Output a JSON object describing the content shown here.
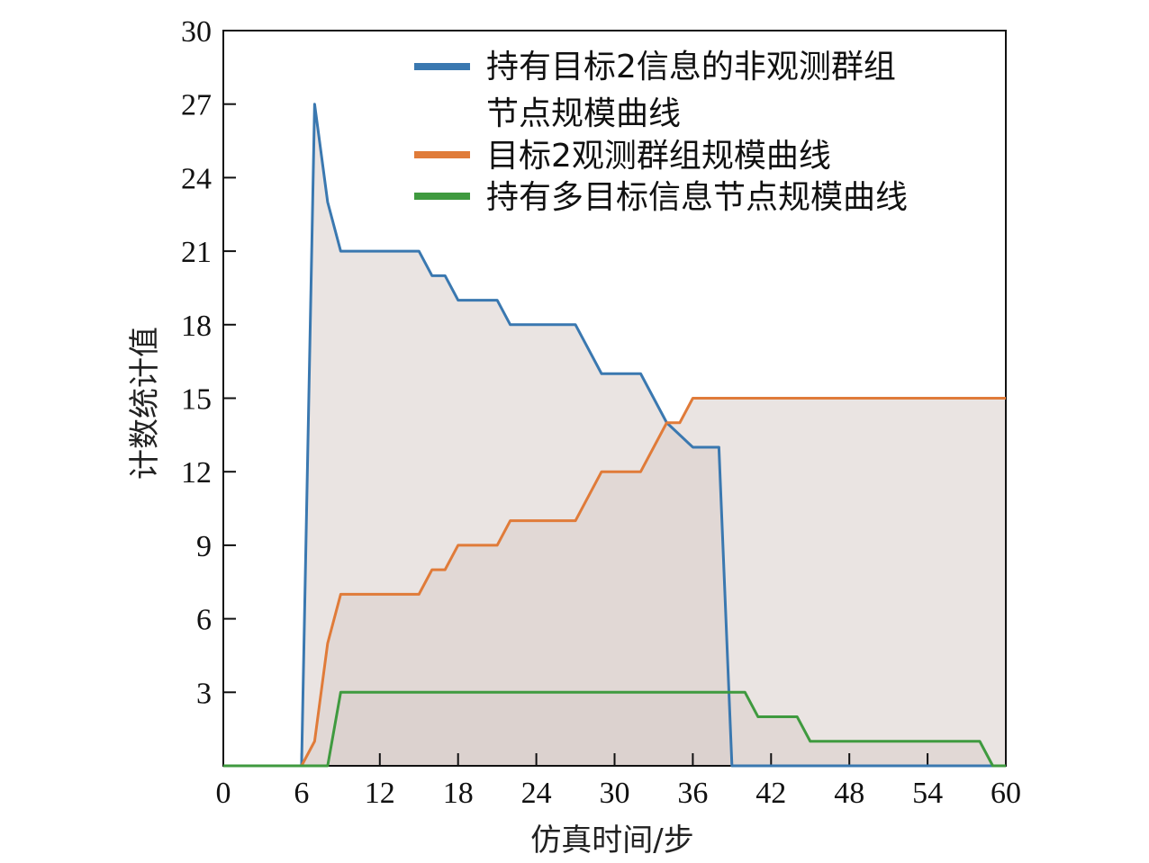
{
  "chart_data": {
    "type": "area",
    "xlabel": "仿真时间/步",
    "ylabel": "计数统计值",
    "xlim": [
      0,
      60
    ],
    "ylim": [
      0,
      30
    ],
    "x_ticks": [
      0,
      6,
      12,
      18,
      24,
      30,
      36,
      42,
      48,
      54,
      60
    ],
    "y_ticks": [
      3,
      6,
      9,
      12,
      15,
      18,
      21,
      24,
      27,
      30
    ],
    "origin_label": "0",
    "grid": false,
    "legend_position": "top-right",
    "area_fill_color": "#d9cdca",
    "series": [
      {
        "name": "持有目标2信息的非观测群组节点规模曲线",
        "color": "#3a78b0",
        "points": [
          [
            0,
            0
          ],
          [
            6,
            0
          ],
          [
            7,
            27
          ],
          [
            8,
            23
          ],
          [
            9,
            21
          ],
          [
            15,
            21
          ],
          [
            16,
            20
          ],
          [
            17,
            20
          ],
          [
            18,
            19
          ],
          [
            21,
            19
          ],
          [
            22,
            18
          ],
          [
            27,
            18
          ],
          [
            29,
            16
          ],
          [
            32,
            16
          ],
          [
            34,
            14
          ],
          [
            36,
            13
          ],
          [
            38,
            13
          ],
          [
            39,
            0
          ],
          [
            60,
            0
          ]
        ]
      },
      {
        "name": "目标2观测群组规模曲线",
        "color": "#e07b39",
        "points": [
          [
            0,
            0
          ],
          [
            6,
            0
          ],
          [
            7,
            1
          ],
          [
            8,
            5
          ],
          [
            9,
            7
          ],
          [
            15,
            7
          ],
          [
            16,
            8
          ],
          [
            17,
            8
          ],
          [
            18,
            9
          ],
          [
            21,
            9
          ],
          [
            22,
            10
          ],
          [
            27,
            10
          ],
          [
            29,
            12
          ],
          [
            32,
            12
          ],
          [
            34,
            14
          ],
          [
            35,
            14
          ],
          [
            36,
            15
          ],
          [
            60,
            15
          ]
        ]
      },
      {
        "name": "持有多目标信息节点规模曲线",
        "color": "#3f9a3f",
        "points": [
          [
            0,
            0
          ],
          [
            8,
            0
          ],
          [
            9,
            3
          ],
          [
            40,
            3
          ],
          [
            41,
            2
          ],
          [
            44,
            2
          ],
          [
            45,
            1
          ],
          [
            58,
            1
          ],
          [
            59,
            0
          ],
          [
            60,
            0
          ]
        ]
      }
    ]
  }
}
